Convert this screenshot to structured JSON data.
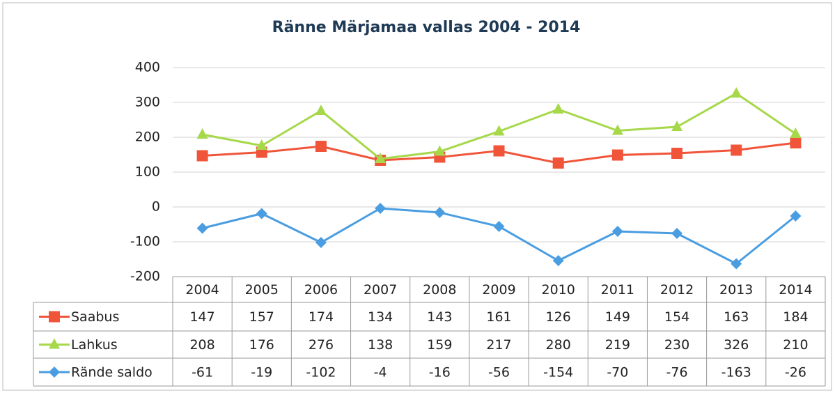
{
  "chart_data": {
    "type": "line",
    "title": "Ränne Märjamaa vallas 2004 - 2014",
    "categories": [
      "2004",
      "2005",
      "2006",
      "2007",
      "2008",
      "2009",
      "2010",
      "2011",
      "2012",
      "2013",
      "2014"
    ],
    "series": [
      {
        "name": "Saabus",
        "color": "#f0553a",
        "marker": "square",
        "values": [
          147,
          157,
          174,
          134,
          143,
          161,
          126,
          149,
          154,
          163,
          184
        ]
      },
      {
        "name": "Lahkus",
        "color": "#a6d84a",
        "marker": "triangle",
        "values": [
          208,
          176,
          276,
          138,
          159,
          217,
          280,
          219,
          230,
          326,
          210
        ]
      },
      {
        "name": "Rände saldo",
        "color": "#4a9de0",
        "marker": "diamond",
        "values": [
          -61,
          -19,
          -102,
          -4,
          -16,
          -56,
          -154,
          -70,
          -76,
          -163,
          -26
        ]
      }
    ],
    "ylim": [
      -200,
      400
    ],
    "yticks": [
      -200,
      -100,
      0,
      100,
      200,
      300,
      400
    ],
    "grid": true,
    "data_table": true
  }
}
